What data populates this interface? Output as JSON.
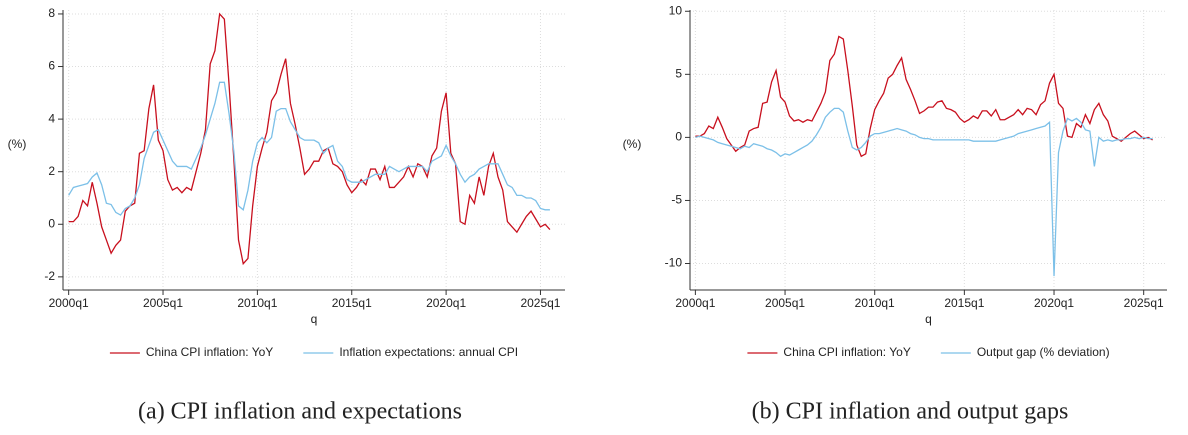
{
  "chart_data": [
    {
      "type": "line",
      "caption": "(a) CPI inflation and expectations",
      "x_label": "q",
      "y_label": "(%)",
      "grid": true,
      "x": [
        2000,
        2000.25,
        2000.5,
        2000.75,
        2001,
        2001.25,
        2001.5,
        2001.75,
        2002,
        2002.25,
        2002.5,
        2002.75,
        2003,
        2003.25,
        2003.5,
        2003.75,
        2004,
        2004.25,
        2004.5,
        2004.75,
        2005,
        2005.25,
        2005.5,
        2005.75,
        2006,
        2006.25,
        2006.5,
        2006.75,
        2007,
        2007.25,
        2007.5,
        2007.75,
        2008,
        2008.25,
        2008.5,
        2008.75,
        2009,
        2009.25,
        2009.5,
        2009.75,
        2010,
        2010.25,
        2010.5,
        2010.75,
        2011,
        2011.25,
        2011.5,
        2011.75,
        2012,
        2012.25,
        2012.5,
        2012.75,
        2013,
        2013.25,
        2013.5,
        2013.75,
        2014,
        2014.25,
        2014.5,
        2014.75,
        2015,
        2015.25,
        2015.5,
        2015.75,
        2016,
        2016.25,
        2016.5,
        2016.75,
        2017,
        2017.25,
        2017.5,
        2017.75,
        2018,
        2018.25,
        2018.5,
        2018.75,
        2019,
        2019.25,
        2019.5,
        2019.75,
        2020,
        2020.25,
        2020.5,
        2020.75,
        2021,
        2021.25,
        2021.5,
        2021.75,
        2022,
        2022.25,
        2022.5,
        2022.75,
        2023,
        2023.25,
        2023.5,
        2023.75,
        2024,
        2024.25,
        2024.5,
        2024.75,
        2025,
        2025.25,
        2025.5
      ],
      "series": [
        {
          "name": "China CPI inflation: YoY",
          "color": "#c8101e",
          "values": [
            0.1,
            0.1,
            0.3,
            0.9,
            0.7,
            1.6,
            0.8,
            -0.1,
            -0.6,
            -1.1,
            -0.8,
            -0.6,
            0.5,
            0.7,
            0.8,
            2.7,
            2.8,
            4.4,
            5.3,
            3.2,
            2.8,
            1.7,
            1.3,
            1.4,
            1.2,
            1.4,
            1.3,
            2.0,
            2.7,
            3.6,
            6.1,
            6.6,
            8.0,
            7.8,
            5.3,
            2.5,
            -0.6,
            -1.5,
            -1.3,
            0.7,
            2.2,
            2.9,
            3.5,
            4.7,
            5.0,
            5.7,
            6.3,
            4.6,
            3.8,
            2.9,
            1.9,
            2.1,
            2.4,
            2.4,
            2.8,
            2.9,
            2.3,
            2.2,
            2.0,
            1.5,
            1.2,
            1.4,
            1.7,
            1.5,
            2.1,
            2.1,
            1.7,
            2.2,
            1.4,
            1.4,
            1.6,
            1.8,
            2.2,
            1.8,
            2.3,
            2.2,
            1.8,
            2.6,
            2.9,
            4.3,
            5.0,
            2.7,
            2.3,
            0.1,
            0.0,
            1.1,
            0.8,
            1.8,
            1.1,
            2.2,
            2.7,
            1.8,
            1.3,
            0.1,
            -0.1,
            -0.3,
            0.0,
            0.3,
            0.5,
            0.2,
            -0.1,
            0.0,
            -0.2
          ]
        },
        {
          "name": "Inflation expectations: annual CPI",
          "color": "#7cc0e8",
          "values": [
            1.1,
            1.4,
            1.45,
            1.5,
            1.55,
            1.8,
            1.95,
            1.5,
            0.8,
            0.75,
            0.45,
            0.35,
            0.6,
            0.7,
            1.0,
            1.5,
            2.5,
            3.0,
            3.5,
            3.6,
            3.2,
            2.8,
            2.4,
            2.2,
            2.2,
            2.2,
            2.1,
            2.5,
            2.9,
            3.4,
            4.0,
            4.6,
            5.4,
            5.4,
            4.2,
            2.8,
            0.7,
            0.55,
            1.3,
            2.4,
            3.1,
            3.3,
            3.1,
            3.3,
            4.3,
            4.4,
            4.4,
            3.9,
            3.6,
            3.3,
            3.2,
            3.2,
            3.2,
            3.1,
            2.7,
            2.9,
            3.0,
            2.4,
            2.2,
            1.7,
            1.6,
            1.6,
            1.6,
            1.7,
            1.8,
            1.9,
            1.9,
            1.9,
            2.2,
            2.1,
            2.0,
            2.1,
            2.2,
            2.2,
            2.2,
            2.2,
            2.0,
            2.4,
            2.5,
            2.6,
            3.0,
            2.6,
            2.3,
            1.9,
            1.6,
            1.8,
            1.9,
            2.1,
            2.2,
            2.3,
            2.3,
            2.3,
            1.9,
            1.5,
            1.4,
            1.1,
            1.1,
            1.0,
            1.0,
            0.9,
            0.6,
            0.55,
            0.55
          ]
        }
      ],
      "xlim": [
        1999.7,
        2026.3
      ],
      "xticks": [
        {
          "value": 2000,
          "label": "2000q1"
        },
        {
          "value": 2005,
          "label": "2005q1"
        },
        {
          "value": 2010,
          "label": "2010q1"
        },
        {
          "value": 2015,
          "label": "2015q1"
        },
        {
          "value": 2020,
          "label": "2020q1"
        },
        {
          "value": 2025,
          "label": "2025q1"
        }
      ],
      "ylim": [
        -2.5,
        8.15
      ],
      "yticks": [
        -2,
        0,
        2,
        4,
        6,
        8
      ]
    },
    {
      "type": "line",
      "caption": "(b) CPI inflation and output gaps",
      "x_label": "q",
      "y_label": "(%)",
      "grid": true,
      "x": [
        2000,
        2000.25,
        2000.5,
        2000.75,
        2001,
        2001.25,
        2001.5,
        2001.75,
        2002,
        2002.25,
        2002.5,
        2002.75,
        2003,
        2003.25,
        2003.5,
        2003.75,
        2004,
        2004.25,
        2004.5,
        2004.75,
        2005,
        2005.25,
        2005.5,
        2005.75,
        2006,
        2006.25,
        2006.5,
        2006.75,
        2007,
        2007.25,
        2007.5,
        2007.75,
        2008,
        2008.25,
        2008.5,
        2008.75,
        2009,
        2009.25,
        2009.5,
        2009.75,
        2010,
        2010.25,
        2010.5,
        2010.75,
        2011,
        2011.25,
        2011.5,
        2011.75,
        2012,
        2012.25,
        2012.5,
        2012.75,
        2013,
        2013.25,
        2013.5,
        2013.75,
        2014,
        2014.25,
        2014.5,
        2014.75,
        2015,
        2015.25,
        2015.5,
        2015.75,
        2016,
        2016.25,
        2016.5,
        2016.75,
        2017,
        2017.25,
        2017.5,
        2017.75,
        2018,
        2018.25,
        2018.5,
        2018.75,
        2019,
        2019.25,
        2019.5,
        2019.75,
        2020,
        2020.25,
        2020.5,
        2020.75,
        2021,
        2021.25,
        2021.5,
        2021.75,
        2022,
        2022.25,
        2022.5,
        2022.75,
        2023,
        2023.25,
        2023.5,
        2023.75,
        2024,
        2024.25,
        2024.5,
        2024.75,
        2025,
        2025.25,
        2025.5
      ],
      "series": [
        {
          "name": "China CPI inflation: YoY",
          "color": "#c8101e",
          "values": [
            0.1,
            0.1,
            0.3,
            0.9,
            0.7,
            1.6,
            0.8,
            -0.1,
            -0.6,
            -1.1,
            -0.8,
            -0.6,
            0.5,
            0.7,
            0.8,
            2.7,
            2.8,
            4.4,
            5.3,
            3.2,
            2.8,
            1.7,
            1.3,
            1.4,
            1.2,
            1.4,
            1.3,
            2.0,
            2.7,
            3.6,
            6.1,
            6.6,
            8.0,
            7.8,
            5.3,
            2.5,
            -0.6,
            -1.5,
            -1.3,
            0.7,
            2.2,
            2.9,
            3.5,
            4.7,
            5.0,
            5.7,
            6.3,
            4.6,
            3.8,
            2.9,
            1.9,
            2.1,
            2.4,
            2.4,
            2.8,
            2.9,
            2.3,
            2.2,
            2.0,
            1.5,
            1.2,
            1.4,
            1.7,
            1.5,
            2.1,
            2.1,
            1.7,
            2.2,
            1.4,
            1.4,
            1.6,
            1.8,
            2.2,
            1.8,
            2.3,
            2.2,
            1.8,
            2.6,
            2.9,
            4.3,
            5.0,
            2.7,
            2.3,
            0.1,
            0.0,
            1.1,
            0.8,
            1.8,
            1.1,
            2.2,
            2.7,
            1.8,
            1.3,
            0.1,
            -0.1,
            -0.3,
            0.0,
            0.3,
            0.5,
            0.2,
            -0.1,
            0.0,
            -0.2
          ]
        },
        {
          "name": "Output gap (% deviation)",
          "color": "#7cc0e8",
          "values": [
            0.0,
            0.1,
            0.0,
            -0.1,
            -0.2,
            -0.4,
            -0.5,
            -0.6,
            -0.7,
            -0.8,
            -0.9,
            -0.7,
            -0.8,
            -0.5,
            -0.6,
            -0.7,
            -0.9,
            -1.0,
            -1.2,
            -1.5,
            -1.3,
            -1.4,
            -1.2,
            -1.0,
            -0.8,
            -0.6,
            -0.3,
            0.2,
            0.8,
            1.6,
            2.0,
            2.3,
            2.3,
            2.0,
            0.5,
            -0.8,
            -1.0,
            -0.8,
            -0.4,
            0.1,
            0.3,
            0.3,
            0.4,
            0.5,
            0.6,
            0.7,
            0.6,
            0.5,
            0.3,
            0.2,
            0.0,
            -0.1,
            -0.1,
            -0.2,
            -0.2,
            -0.2,
            -0.2,
            -0.2,
            -0.2,
            -0.2,
            -0.2,
            -0.2,
            -0.3,
            -0.3,
            -0.3,
            -0.3,
            -0.3,
            -0.3,
            -0.2,
            -0.1,
            0.0,
            0.1,
            0.3,
            0.4,
            0.5,
            0.6,
            0.7,
            0.8,
            0.9,
            1.2,
            -11.0,
            -1.2,
            0.5,
            1.5,
            1.3,
            1.5,
            1.2,
            0.6,
            0.5,
            -2.3,
            0.0,
            -0.3,
            -0.2,
            -0.3,
            -0.2,
            -0.2,
            -0.1,
            -0.1,
            0.0,
            -0.1,
            0.0,
            -0.1,
            -0.1
          ]
        }
      ],
      "xlim": [
        1999.7,
        2026.3
      ],
      "xticks": [
        {
          "value": 2000,
          "label": "2000q1"
        },
        {
          "value": 2005,
          "label": "2005q1"
        },
        {
          "value": 2010,
          "label": "2010q1"
        },
        {
          "value": 2015,
          "label": "2015q1"
        },
        {
          "value": 2020,
          "label": "2020q1"
        },
        {
          "value": 2025,
          "label": "2025q1"
        }
      ],
      "ylim": [
        -12.1,
        10.1
      ],
      "yticks": [
        -10,
        -5,
        0,
        5,
        10
      ]
    }
  ]
}
